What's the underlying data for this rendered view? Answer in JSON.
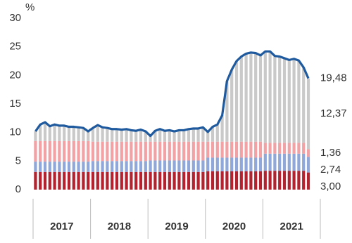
{
  "chart_data": {
    "type": "bar",
    "stacked": true,
    "y_label": "%",
    "ylim": [
      0,
      30
    ],
    "yticks": [
      0,
      5,
      10,
      15,
      20,
      25,
      30
    ],
    "categories": [
      "2017",
      null,
      null,
      null,
      null,
      null,
      null,
      null,
      null,
      null,
      null,
      null,
      "2018",
      null,
      null,
      null,
      null,
      null,
      null,
      null,
      null,
      null,
      null,
      null,
      "2019",
      null,
      null,
      null,
      null,
      null,
      null,
      null,
      null,
      null,
      null,
      null,
      "2020",
      null,
      null,
      null,
      null,
      null,
      null,
      null,
      null,
      null,
      null,
      null,
      "2021",
      null,
      null,
      null,
      null,
      null,
      null,
      null,
      null,
      null
    ],
    "series": [
      {
        "type": "bar",
        "color": "#b3232f",
        "values": [
          3.1,
          3.1,
          3.1,
          3.1,
          3.1,
          3.1,
          3.1,
          3.1,
          3.1,
          3.1,
          3.1,
          3.1,
          3.1,
          3.1,
          3.1,
          3.1,
          3.1,
          3.1,
          3.1,
          3.1,
          3.1,
          3.1,
          3.1,
          3.1,
          3.1,
          3.1,
          3.1,
          3.1,
          3.1,
          3.1,
          3.1,
          3.1,
          3.1,
          3.1,
          3.1,
          3.1,
          3.2,
          3.2,
          3.2,
          3.2,
          3.2,
          3.2,
          3.2,
          3.2,
          3.2,
          3.2,
          3.2,
          3.2,
          3.3,
          3.3,
          3.3,
          3.3,
          3.3,
          3.3,
          3.3,
          3.3,
          3.3,
          3.0
        ],
        "value_labels": [
          null,
          null,
          null,
          null,
          null,
          null,
          null,
          null,
          null,
          null,
          null,
          null,
          null,
          null,
          null,
          null,
          null,
          null,
          null,
          null,
          null,
          null,
          null,
          null,
          null,
          null,
          null,
          null,
          null,
          null,
          null,
          null,
          null,
          null,
          null,
          null,
          null,
          null,
          null,
          null,
          null,
          null,
          null,
          null,
          null,
          null,
          null,
          null,
          null,
          null,
          null,
          null,
          null,
          null,
          null,
          null,
          null,
          "3,00"
        ]
      },
      {
        "type": "bar",
        "color": "#8fa7d9",
        "values": [
          1.8,
          1.8,
          1.8,
          1.8,
          1.8,
          1.8,
          1.8,
          1.8,
          1.8,
          1.8,
          1.8,
          1.8,
          1.9,
          1.9,
          1.9,
          1.9,
          1.9,
          1.9,
          1.9,
          1.9,
          1.9,
          1.9,
          1.9,
          1.9,
          2.0,
          2.0,
          2.0,
          2.0,
          2.0,
          2.0,
          2.0,
          2.0,
          2.0,
          2.0,
          2.0,
          2.0,
          2.4,
          2.4,
          2.4,
          2.4,
          2.4,
          2.4,
          2.4,
          2.4,
          2.4,
          2.4,
          2.4,
          2.4,
          3.0,
          3.0,
          3.0,
          3.0,
          3.0,
          3.0,
          3.0,
          3.0,
          3.0,
          2.74
        ],
        "value_labels": [
          null,
          null,
          null,
          null,
          null,
          null,
          null,
          null,
          null,
          null,
          null,
          null,
          null,
          null,
          null,
          null,
          null,
          null,
          null,
          null,
          null,
          null,
          null,
          null,
          null,
          null,
          null,
          null,
          null,
          null,
          null,
          null,
          null,
          null,
          null,
          null,
          null,
          null,
          null,
          null,
          null,
          null,
          null,
          null,
          null,
          null,
          null,
          null,
          null,
          null,
          null,
          null,
          null,
          null,
          null,
          null,
          null,
          "2,74"
        ]
      },
      {
        "type": "bar",
        "color": "#f2a1a4",
        "values": [
          3.6,
          3.6,
          3.6,
          3.6,
          3.6,
          3.6,
          3.6,
          3.6,
          3.6,
          3.6,
          3.6,
          3.6,
          3.4,
          3.4,
          3.4,
          3.4,
          3.4,
          3.4,
          3.4,
          3.4,
          3.4,
          3.4,
          3.4,
          3.4,
          3.3,
          3.3,
          3.3,
          3.3,
          3.3,
          3.3,
          3.3,
          3.3,
          3.3,
          3.3,
          3.3,
          3.3,
          2.8,
          2.8,
          2.8,
          2.8,
          2.8,
          2.8,
          2.8,
          2.8,
          2.8,
          2.8,
          2.8,
          2.8,
          1.9,
          1.9,
          1.9,
          1.9,
          1.9,
          1.9,
          1.9,
          1.9,
          1.9,
          1.36
        ],
        "value_labels": [
          null,
          null,
          null,
          null,
          null,
          null,
          null,
          null,
          null,
          null,
          null,
          null,
          null,
          null,
          null,
          null,
          null,
          null,
          null,
          null,
          null,
          null,
          null,
          null,
          null,
          null,
          null,
          null,
          null,
          null,
          null,
          null,
          null,
          null,
          null,
          null,
          null,
          null,
          null,
          null,
          null,
          null,
          null,
          null,
          null,
          null,
          null,
          null,
          null,
          null,
          null,
          null,
          null,
          null,
          null,
          null,
          null,
          "1,36"
        ]
      },
      {
        "type": "bar",
        "color": "#c9c9c9",
        "values": [
          1.7,
          2.9,
          3.3,
          2.6,
          2.9,
          2.7,
          2.7,
          2.5,
          2.5,
          2.4,
          2.3,
          1.7,
          2.4,
          2.9,
          2.5,
          2.4,
          2.2,
          2.2,
          2.1,
          2.2,
          2.0,
          1.9,
          2.1,
          1.8,
          1.0,
          1.9,
          2.2,
          1.9,
          2.0,
          1.8,
          2.0,
          2.0,
          2.2,
          2.3,
          2.3,
          2.5,
          1.7,
          2.6,
          3.0,
          4.6,
          10.6,
          12.6,
          14.1,
          14.9,
          15.4,
          15.6,
          15.5,
          15.1,
          16.0,
          16.0,
          15.2,
          15.1,
          14.8,
          14.5,
          14.7,
          14.4,
          13.2,
          12.37
        ],
        "value_labels": [
          null,
          null,
          null,
          null,
          null,
          null,
          null,
          null,
          null,
          null,
          null,
          null,
          null,
          null,
          null,
          null,
          null,
          null,
          null,
          null,
          null,
          null,
          null,
          null,
          null,
          null,
          null,
          null,
          null,
          null,
          null,
          null,
          null,
          null,
          null,
          null,
          null,
          null,
          null,
          null,
          null,
          null,
          null,
          null,
          null,
          null,
          null,
          null,
          null,
          null,
          null,
          null,
          null,
          null,
          null,
          null,
          null,
          "12,37"
        ]
      },
      {
        "type": "line",
        "color": "#1f5a9e",
        "values": [
          10.2,
          11.4,
          11.8,
          11.1,
          11.4,
          11.2,
          11.2,
          11.0,
          11.0,
          10.9,
          10.8,
          10.2,
          10.8,
          11.3,
          10.9,
          10.8,
          10.6,
          10.6,
          10.5,
          10.6,
          10.4,
          10.3,
          10.5,
          10.2,
          9.4,
          10.3,
          10.6,
          10.3,
          10.4,
          10.2,
          10.4,
          10.4,
          10.6,
          10.7,
          10.7,
          10.9,
          10.1,
          11.0,
          11.4,
          13.0,
          19.0,
          21.0,
          22.5,
          23.3,
          23.8,
          24.0,
          23.9,
          23.5,
          24.2,
          24.2,
          23.4,
          23.3,
          23.0,
          22.7,
          22.9,
          22.6,
          21.4,
          19.48
        ],
        "value_labels": [
          null,
          null,
          null,
          null,
          null,
          null,
          null,
          null,
          null,
          null,
          null,
          null,
          null,
          null,
          null,
          null,
          null,
          null,
          null,
          null,
          null,
          null,
          null,
          null,
          null,
          null,
          null,
          null,
          null,
          null,
          null,
          null,
          null,
          null,
          null,
          null,
          null,
          null,
          null,
          null,
          null,
          null,
          null,
          null,
          null,
          null,
          null,
          null,
          null,
          null,
          null,
          null,
          null,
          null,
          null,
          null,
          null,
          "19,48"
        ]
      }
    ]
  }
}
